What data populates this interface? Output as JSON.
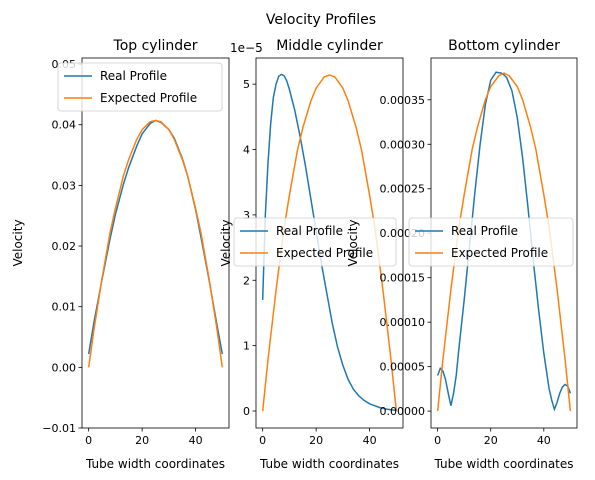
{
  "figure_title": "Velocity Profiles",
  "colors": {
    "real": "#1f77b4",
    "expected": "#ff7f0e"
  },
  "chart_data": [
    {
      "type": "line",
      "title": "Top cylinder",
      "xlabel": "Tube width coordinates",
      "ylabel": "Velocity",
      "xlim": [
        -2.5,
        52.5
      ],
      "ylim": [
        -0.01,
        0.051
      ],
      "xticks": [
        "0",
        "20",
        "40"
      ],
      "xtick_values": [
        0,
        20,
        40
      ],
      "yticks": [
        "−0.01",
        "0.00",
        "0.01",
        "0.02",
        "0.03",
        "0.04",
        "0.05"
      ],
      "ytick_values": [
        -0.01,
        0.0,
        0.01,
        0.02,
        0.03,
        0.04,
        0.05
      ],
      "offset_label": "",
      "legend": "upper-left",
      "series": [
        {
          "name": "Real Profile",
          "x": [
            0,
            2,
            5,
            8,
            10,
            13,
            15,
            18,
            20,
            23,
            25,
            27,
            30,
            32,
            35,
            37,
            40,
            42,
            45,
            48,
            50
          ],
          "y": [
            0.0022,
            0.0075,
            0.0145,
            0.0212,
            0.0252,
            0.0302,
            0.033,
            0.0365,
            0.0385,
            0.0402,
            0.0407,
            0.0404,
            0.0392,
            0.0378,
            0.0345,
            0.0316,
            0.026,
            0.0215,
            0.0145,
            0.007,
            0.0022
          ]
        },
        {
          "name": "Expected Profile",
          "x": [
            0,
            2,
            5,
            8,
            10,
            13,
            15,
            18,
            20,
            23,
            25,
            27,
            30,
            32,
            35,
            37,
            40,
            42,
            45,
            48,
            50
          ],
          "y": [
            0.0,
            0.0063,
            0.0147,
            0.0222,
            0.0262,
            0.0316,
            0.0343,
            0.0376,
            0.0392,
            0.0405,
            0.0407,
            0.0405,
            0.0392,
            0.0376,
            0.0343,
            0.0316,
            0.0262,
            0.0222,
            0.0147,
            0.0063,
            0.0
          ]
        }
      ]
    },
    {
      "type": "line",
      "title": "Middle cylinder",
      "xlabel": "Tube width coordinates",
      "ylabel": "Velocity",
      "xlim": [
        -2.5,
        52.5
      ],
      "ylim": [
        -0.26,
        5.4
      ],
      "xticks": [
        "0",
        "20",
        "40"
      ],
      "xtick_values": [
        0,
        20,
        40
      ],
      "yticks": [
        "0",
        "1",
        "2",
        "3",
        "4",
        "5"
      ],
      "ytick_values": [
        0,
        1,
        2,
        3,
        4,
        5
      ],
      "offset_label": "1e−5",
      "legend": "center-left",
      "series": [
        {
          "name": "Real Profile",
          "x": [
            0,
            1,
            2,
            3,
            4,
            5,
            6,
            7,
            8,
            9,
            10,
            12,
            14,
            16,
            18,
            20,
            22,
            24,
            26,
            28,
            30,
            32,
            34,
            36,
            38,
            40,
            42,
            44,
            46,
            48,
            50
          ],
          "y": [
            1.7,
            3.0,
            3.8,
            4.4,
            4.8,
            5.0,
            5.12,
            5.15,
            5.13,
            5.05,
            4.92,
            4.6,
            4.2,
            3.75,
            3.25,
            2.75,
            2.25,
            1.8,
            1.35,
            0.98,
            0.7,
            0.48,
            0.33,
            0.23,
            0.16,
            0.11,
            0.08,
            0.05,
            0.03,
            0.02,
            0.01
          ]
        },
        {
          "name": "Expected Profile",
          "x": [
            0,
            2,
            5,
            8,
            10,
            13,
            15,
            18,
            20,
            23,
            25,
            27,
            30,
            32,
            35,
            37,
            40,
            42,
            45,
            48,
            50
          ],
          "y": [
            0.0,
            0.79,
            1.85,
            2.8,
            3.3,
            3.99,
            4.33,
            4.74,
            4.94,
            5.11,
            5.14,
            5.11,
            4.94,
            4.74,
            4.33,
            3.99,
            3.3,
            2.8,
            1.85,
            0.79,
            0.0
          ]
        }
      ]
    },
    {
      "type": "line",
      "title": "Bottom cylinder",
      "xlabel": "Tube width coordinates",
      "ylabel": "Velocity",
      "xlim": [
        -2.5,
        52.5
      ],
      "ylim": [
        -1.9e-05,
        0.000397
      ],
      "xticks": [
        "0",
        "20",
        "40"
      ],
      "xtick_values": [
        0,
        20,
        40
      ],
      "yticks": [
        "0.00000",
        "0.00005",
        "0.00010",
        "0.00015",
        "0.00020",
        "0.00025",
        "0.00030",
        "0.00035"
      ],
      "ytick_values": [
        0.0,
        5e-05,
        0.0001,
        0.00015,
        0.0002,
        0.00025,
        0.0003,
        0.00035
      ],
      "offset_label": "",
      "legend": "center-left",
      "series": [
        {
          "name": "Real Profile",
          "x": [
            0,
            1,
            2,
            3,
            4,
            5,
            6,
            7,
            8,
            10,
            12,
            14,
            16,
            18,
            20,
            22,
            24,
            25,
            26,
            28,
            30,
            32,
            34,
            36,
            38,
            40,
            42,
            43,
            44,
            45,
            46,
            47,
            48,
            49,
            50
          ],
          "y": [
            4e-05,
            4.8e-05,
            4.5e-05,
            3.5e-05,
            2e-05,
            6e-06,
            2e-05,
            4e-05,
            7e-05,
            0.000125,
            0.000185,
            0.000245,
            0.0003,
            0.000345,
            0.000372,
            0.000381,
            0.00038,
            0.000378,
            0.000375,
            0.00036,
            0.00033,
            0.000285,
            0.00023,
            0.00017,
            0.000115,
            6.5e-05,
            2.5e-05,
            1.2e-05,
            2e-06,
            1e-05,
            2e-05,
            2.7e-05,
            3e-05,
            2.8e-05,
            2e-05
          ]
        },
        {
          "name": "Expected Profile",
          "x": [
            0,
            2,
            5,
            8,
            10,
            13,
            15,
            18,
            20,
            23,
            25,
            27,
            30,
            32,
            35,
            37,
            40,
            42,
            45,
            48,
            50
          ],
          "y": [
            0.0,
            5.84e-05,
            0.0001368,
            0.0002067,
            0.0002432,
            0.0002943,
            0.0003192,
            0.0003502,
            0.0003648,
            0.0003769,
            0.00038,
            0.0003769,
            0.0003648,
            0.0003502,
            0.0003192,
            0.0002943,
            0.0002432,
            0.0002067,
            0.0001368,
            5.84e-05,
            0.0
          ]
        }
      ]
    }
  ]
}
